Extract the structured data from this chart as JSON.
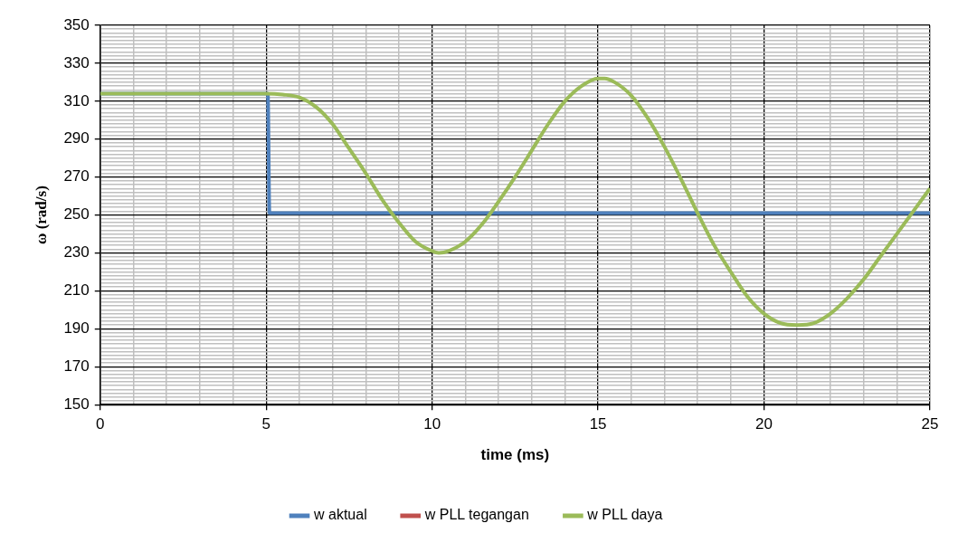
{
  "chart_data": {
    "type": "line",
    "xlabel": "time (ms)",
    "ylabel": "ω (rad/s)",
    "xlim": [
      0,
      25
    ],
    "ylim": [
      150,
      350
    ],
    "xticks": [
      0,
      {
        "value": 1,
        "label": null
      },
      {
        "value": 2,
        "label": null
      },
      {
        "value": 3,
        "label": null
      },
      {
        "value": 4,
        "label": null
      },
      5,
      {
        "value": 6,
        "label": null
      },
      {
        "value": 7,
        "label": null
      },
      {
        "value": 8,
        "label": null
      },
      {
        "value": 9,
        "label": null
      },
      10,
      {
        "value": 11,
        "label": null
      },
      {
        "value": 12,
        "label": null
      },
      {
        "value": 13,
        "label": null
      },
      {
        "value": 14,
        "label": null
      },
      15,
      {
        "value": 16,
        "label": null
      },
      {
        "value": 17,
        "label": null
      },
      {
        "value": 18,
        "label": null
      },
      {
        "value": 19,
        "label": null
      },
      20,
      {
        "value": 21,
        "label": null
      },
      {
        "value": 22,
        "label": null
      },
      {
        "value": 23,
        "label": null
      },
      {
        "value": 24,
        "label": null
      },
      25
    ],
    "yticks": [
      150,
      {
        "value": 152,
        "label": null
      },
      {
        "value": 154,
        "label": null
      },
      {
        "value": 156,
        "label": null
      },
      {
        "value": 158,
        "label": null
      },
      {
        "value": 160,
        "label": null
      },
      {
        "value": 162,
        "label": null
      },
      {
        "value": 164,
        "label": null
      },
      {
        "value": 166,
        "label": null
      },
      {
        "value": 168,
        "label": null
      },
      170,
      {
        "value": 172,
        "label": null
      },
      {
        "value": 174,
        "label": null
      },
      {
        "value": 176,
        "label": null
      },
      {
        "value": 178,
        "label": null
      },
      {
        "value": 180,
        "label": null
      },
      {
        "value": 182,
        "label": null
      },
      {
        "value": 184,
        "label": null
      },
      {
        "value": 186,
        "label": null
      },
      {
        "value": 188,
        "label": null
      },
      190,
      {
        "value": 192,
        "label": null
      },
      {
        "value": 194,
        "label": null
      },
      {
        "value": 196,
        "label": null
      },
      {
        "value": 198,
        "label": null
      },
      {
        "value": 200,
        "label": null
      },
      {
        "value": 202,
        "label": null
      },
      {
        "value": 204,
        "label": null
      },
      {
        "value": 206,
        "label": null
      },
      {
        "value": 208,
        "label": null
      },
      210,
      {
        "value": 212,
        "label": null
      },
      {
        "value": 214,
        "label": null
      },
      {
        "value": 216,
        "label": null
      },
      {
        "value": 218,
        "label": null
      },
      {
        "value": 220,
        "label": null
      },
      {
        "value": 222,
        "label": null
      },
      {
        "value": 224,
        "label": null
      },
      {
        "value": 226,
        "label": null
      },
      {
        "value": 228,
        "label": null
      },
      230,
      {
        "value": 232,
        "label": null
      },
      {
        "value": 234,
        "label": null
      },
      {
        "value": 236,
        "label": null
      },
      {
        "value": 238,
        "label": null
      },
      {
        "value": 240,
        "label": null
      },
      {
        "value": 242,
        "label": null
      },
      {
        "value": 244,
        "label": null
      },
      {
        "value": 246,
        "label": null
      },
      {
        "value": 248,
        "label": null
      },
      250,
      {
        "value": 252,
        "label": null
      },
      {
        "value": 254,
        "label": null
      },
      {
        "value": 256,
        "label": null
      },
      {
        "value": 258,
        "label": null
      },
      {
        "value": 260,
        "label": null
      },
      {
        "value": 262,
        "label": null
      },
      {
        "value": 264,
        "label": null
      },
      {
        "value": 266,
        "label": null
      },
      {
        "value": 268,
        "label": null
      },
      270,
      {
        "value": 272,
        "label": null
      },
      {
        "value": 274,
        "label": null
      },
      {
        "value": 276,
        "label": null
      },
      {
        "value": 278,
        "label": null
      },
      {
        "value": 280,
        "label": null
      },
      {
        "value": 282,
        "label": null
      },
      {
        "value": 284,
        "label": null
      },
      {
        "value": 286,
        "label": null
      },
      {
        "value": 288,
        "label": null
      },
      290,
      {
        "value": 292,
        "label": null
      },
      {
        "value": 294,
        "label": null
      },
      {
        "value": 296,
        "label": null
      },
      {
        "value": 298,
        "label": null
      },
      {
        "value": 300,
        "label": null
      },
      {
        "value": 302,
        "label": null
      },
      {
        "value": 304,
        "label": null
      },
      {
        "value": 306,
        "label": null
      },
      {
        "value": 308,
        "label": null
      },
      310,
      {
        "value": 312,
        "label": null
      },
      {
        "value": 314,
        "label": null
      },
      {
        "value": 316,
        "label": null
      },
      {
        "value": 318,
        "label": null
      },
      {
        "value": 320,
        "label": null
      },
      {
        "value": 322,
        "label": null
      },
      {
        "value": 324,
        "label": null
      },
      {
        "value": 326,
        "label": null
      },
      {
        "value": 328,
        "label": null
      },
      330,
      {
        "value": 332,
        "label": null
      },
      {
        "value": 334,
        "label": null
      },
      {
        "value": 336,
        "label": null
      },
      {
        "value": 338,
        "label": null
      },
      {
        "value": 340,
        "label": null
      },
      {
        "value": 342,
        "label": null
      },
      {
        "value": 344,
        "label": null
      },
      {
        "value": 346,
        "label": null
      },
      {
        "value": 348,
        "label": null
      },
      350
    ],
    "grid": true,
    "legend": "bottom",
    "marker": "none",
    "line_style": "solid",
    "series": [
      {
        "name": "w aktual",
        "color": "#4f81bd",
        "x": [
          0,
          5.05,
          5.1,
          25
        ],
        "values": [
          314,
          314,
          251,
          251
        ]
      },
      {
        "name": "w PLL tegangan",
        "color": "#c0504d"
      },
      {
        "name": "w PLL daya",
        "color": "#9bbb59",
        "x": [
          0,
          5,
          5.5,
          6,
          6.5,
          7,
          7.5,
          8,
          8.5,
          9,
          9.5,
          10,
          10.2,
          10.5,
          11,
          11.5,
          12,
          12.5,
          13,
          13.5,
          14,
          14.5,
          15,
          15.2,
          15.5,
          16,
          16.5,
          17,
          17.5,
          18,
          18.5,
          19,
          19.5,
          20,
          20.5,
          21,
          21.5,
          22,
          22.5,
          23,
          23.5,
          24,
          24.5,
          25
        ],
        "values": [
          314,
          314,
          313.5,
          312,
          307,
          298,
          285,
          272,
          258,
          246,
          236,
          231,
          230,
          231,
          236,
          245,
          257,
          270,
          284,
          298,
          310,
          318,
          322,
          322,
          320,
          313,
          301,
          286,
          269,
          251,
          234,
          220,
          207,
          198,
          193,
          192,
          193,
          198,
          206,
          216,
          228,
          240,
          252,
          264
        ]
      }
    ]
  }
}
